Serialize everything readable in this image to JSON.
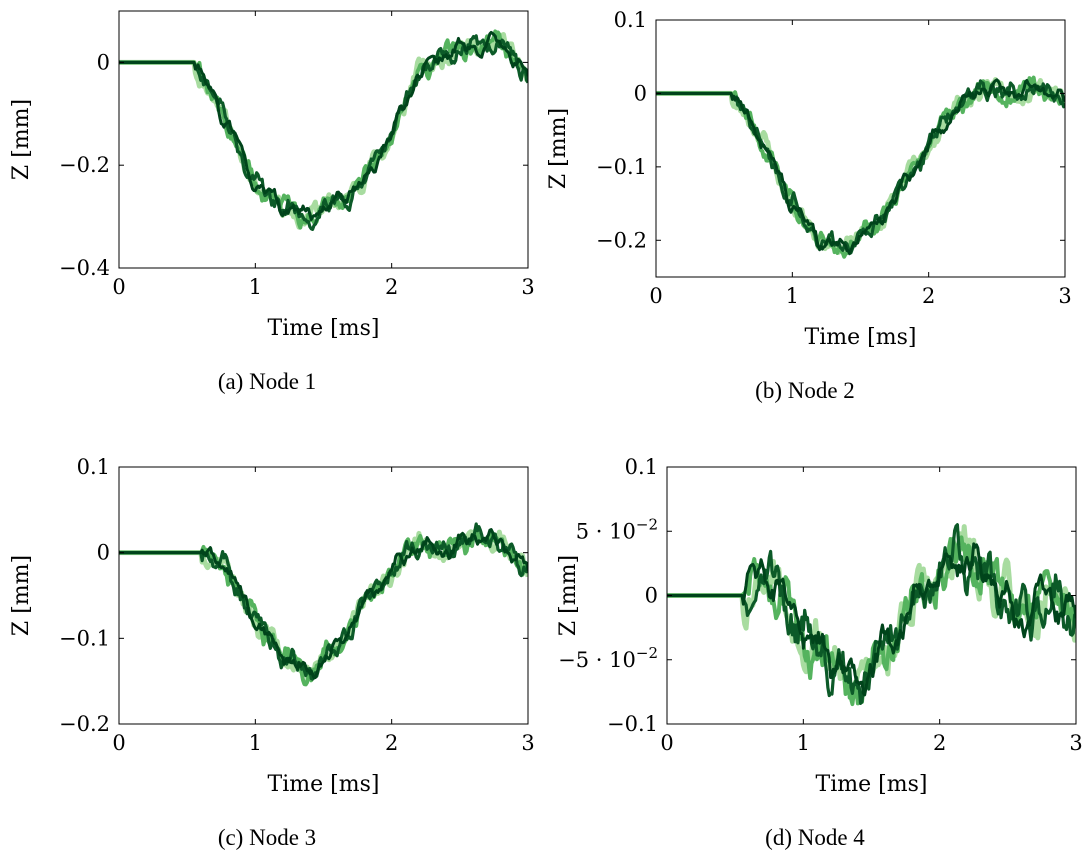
{
  "colors": {
    "light": "#a8dca0",
    "mid": "#55b35e",
    "dark": "#0c5a28",
    "darkest": "#00441b"
  },
  "chart_data": [
    {
      "type": "line",
      "panel": "a",
      "caption": "(a) Node 1",
      "xlabel": "Time [ms]",
      "ylabel": "Z [mm]",
      "xlim": [
        0,
        3
      ],
      "ylim": [
        -0.4,
        0.1
      ],
      "xticks": [
        0,
        1,
        2,
        3
      ],
      "xtick_labels": [
        "0",
        "1",
        "2",
        "3"
      ],
      "yticks": [
        -0.4,
        -0.2,
        0
      ],
      "ytick_labels": [
        "−0.4",
        "−0.2",
        "0"
      ],
      "x": [
        0,
        0.55,
        0.7,
        0.85,
        1.0,
        1.2,
        1.4,
        1.6,
        1.8,
        2.0,
        2.2,
        2.4,
        2.6,
        2.8,
        3.0
      ],
      "series": [
        {
          "values": [
            0,
            0,
            -0.07,
            -0.15,
            -0.24,
            -0.28,
            -0.3,
            -0.27,
            -0.23,
            -0.14,
            -0.02,
            0.02,
            0.03,
            0.04,
            -0.03
          ]
        }
      ]
    },
    {
      "type": "line",
      "panel": "b",
      "caption": "(b) Node 2",
      "xlabel": "Time [ms]",
      "ylabel": "Z [mm]",
      "xlim": [
        0,
        3
      ],
      "ylim": [
        -0.25,
        0.1
      ],
      "xticks": [
        0,
        1,
        2,
        3
      ],
      "xtick_labels": [
        "0",
        "1",
        "2",
        "3"
      ],
      "yticks": [
        -0.2,
        -0.1,
        0,
        0.1
      ],
      "ytick_labels": [
        "−0.2",
        "−0.1",
        "0",
        "0.1"
      ],
      "x": [
        0,
        0.55,
        0.7,
        0.85,
        1.0,
        1.2,
        1.4,
        1.6,
        1.8,
        2.0,
        2.2,
        2.4,
        2.6,
        2.8,
        3.0
      ],
      "series": [
        {
          "values": [
            0,
            0,
            -0.04,
            -0.09,
            -0.15,
            -0.2,
            -0.21,
            -0.18,
            -0.13,
            -0.07,
            -0.02,
            0.01,
            0.0,
            0.01,
            -0.01
          ]
        }
      ]
    },
    {
      "type": "line",
      "panel": "c",
      "caption": "(c) Node 3",
      "xlabel": "Time [ms]",
      "ylabel": "Z [mm]",
      "xlim": [
        0,
        3
      ],
      "ylim": [
        -0.2,
        0.1
      ],
      "xticks": [
        0,
        1,
        2,
        3
      ],
      "xtick_labels": [
        "0",
        "1",
        "2",
        "3"
      ],
      "yticks": [
        -0.2,
        -0.1,
        0,
        0.1
      ],
      "ytick_labels": [
        "−0.2",
        "−0.1",
        "0",
        "0.1"
      ],
      "x": [
        0,
        0.6,
        0.75,
        0.9,
        1.0,
        1.2,
        1.4,
        1.6,
        1.8,
        2.0,
        2.2,
        2.4,
        2.6,
        2.8,
        3.0
      ],
      "series": [
        {
          "values": [
            0,
            0,
            -0.01,
            -0.05,
            -0.08,
            -0.12,
            -0.14,
            -0.11,
            -0.06,
            -0.02,
            0.01,
            0.0,
            0.02,
            0.01,
            -0.02
          ]
        }
      ]
    },
    {
      "type": "line",
      "panel": "d",
      "caption": "(d) Node 4",
      "xlabel": "Time [ms]",
      "ylabel": "Z [mm]",
      "xlim": [
        0,
        3
      ],
      "ylim": [
        -0.1,
        0.1
      ],
      "xticks": [
        0,
        1,
        2,
        3
      ],
      "xtick_labels": [
        "0",
        "1",
        "2",
        "3"
      ],
      "yticks": [
        -0.1,
        -0.05,
        0,
        0.05,
        0.1
      ],
      "ytick_labels": [
        "−0.1",
        "−5 · 10",
        "0",
        "5 · 10",
        "0.1"
      ],
      "ytick_exponents": [
        "",
        "−2",
        "",
        "−2",
        ""
      ],
      "x": [
        0,
        0.55,
        0.7,
        0.85,
        1.0,
        1.2,
        1.4,
        1.6,
        1.8,
        2.0,
        2.2,
        2.4,
        2.6,
        2.8,
        3.0
      ],
      "series": [
        {
          "values": [
            0,
            0,
            0.02,
            0.0,
            -0.03,
            -0.05,
            -0.07,
            -0.04,
            -0.01,
            0.02,
            0.03,
            0.01,
            -0.02,
            0.0,
            -0.02
          ]
        }
      ]
    }
  ]
}
